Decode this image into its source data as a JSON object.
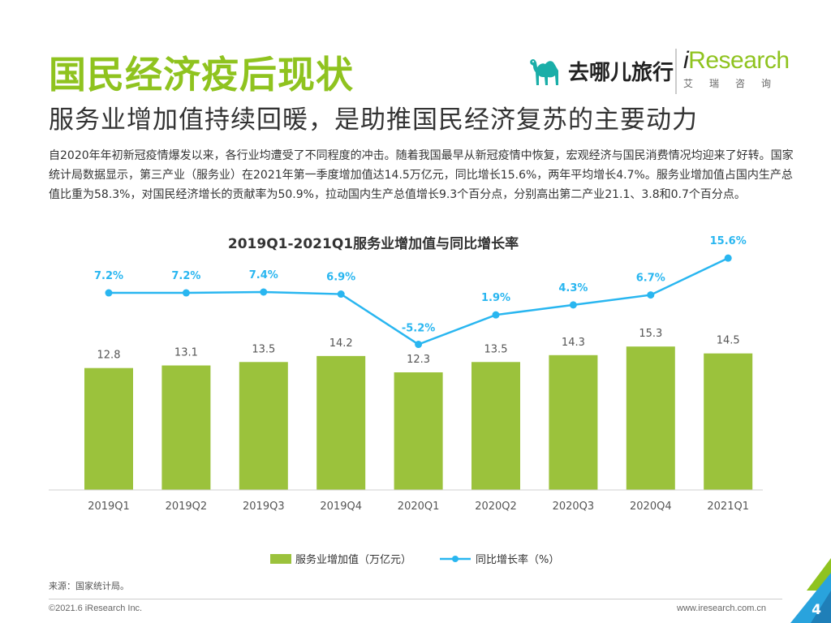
{
  "header": {
    "title": "国民经济疫后现状",
    "subtitle": "服务业增加值持续回暖，是助推国民经济复苏的主要动力"
  },
  "logos": {
    "qunar_text": "去哪儿旅行",
    "iresearch_prefix": "i",
    "iresearch_suffix": "Research",
    "iresearch_cn": "艾瑞咨询"
  },
  "intro": "自2020年年初新冠疫情爆发以来，各行业均遭受了不同程度的冲击。随着我国最早从新冠疫情中恢复，宏观经济与国民消费情况均迎来了好转。国家统计局数据显示，第三产业（服务业）在2021年第一季度增加值达14.5万亿元，同比增长15.6%，两年平均增长4.7%。服务业增加值占国内生产总值比重为58.3%，对国民经济增长的贡献率为50.9%，拉动国内生产总值增长9.3个百分点，分别高出第二产业21.1、3.8和0.7个百分点。",
  "chart_data": {
    "type": "bar",
    "title": "2019Q1-2021Q1服务业增加值与同比增长率",
    "categories": [
      "2019Q1",
      "2019Q2",
      "2019Q3",
      "2019Q4",
      "2020Q1",
      "2020Q2",
      "2020Q3",
      "2020Q4",
      "2021Q1"
    ],
    "series": [
      {
        "name": "服务业增加值（万亿元）",
        "type": "bar",
        "values": [
          12.8,
          13.1,
          13.5,
          14.2,
          12.3,
          13.5,
          14.3,
          15.3,
          14.5
        ],
        "labels": [
          "12.8",
          "13.1",
          "13.5",
          "14.2",
          "12.3",
          "13.5",
          "14.3",
          "15.3",
          "14.5"
        ]
      },
      {
        "name": "同比增长率（%）",
        "type": "line",
        "values": [
          7.2,
          7.2,
          7.4,
          6.9,
          -5.2,
          1.9,
          4.3,
          6.7,
          15.6
        ],
        "labels": [
          "7.2%",
          "7.2%",
          "7.4%",
          "6.9%",
          "-5.2%",
          "1.9%",
          "4.3%",
          "6.7%",
          "15.6%"
        ]
      }
    ],
    "legend_position": "bottom",
    "grid": false,
    "colors": {
      "bar": "#9bc23c",
      "line": "#29b6f0",
      "title": "#333333"
    }
  },
  "source": "来源：国家统计局。",
  "footer": {
    "copyright": "©2021.6 iResearch Inc.",
    "website": "www.iresearch.com.cn",
    "page": "4"
  },
  "brand_colors": {
    "green": "#8fc31f",
    "blue": "#29a3dd"
  }
}
